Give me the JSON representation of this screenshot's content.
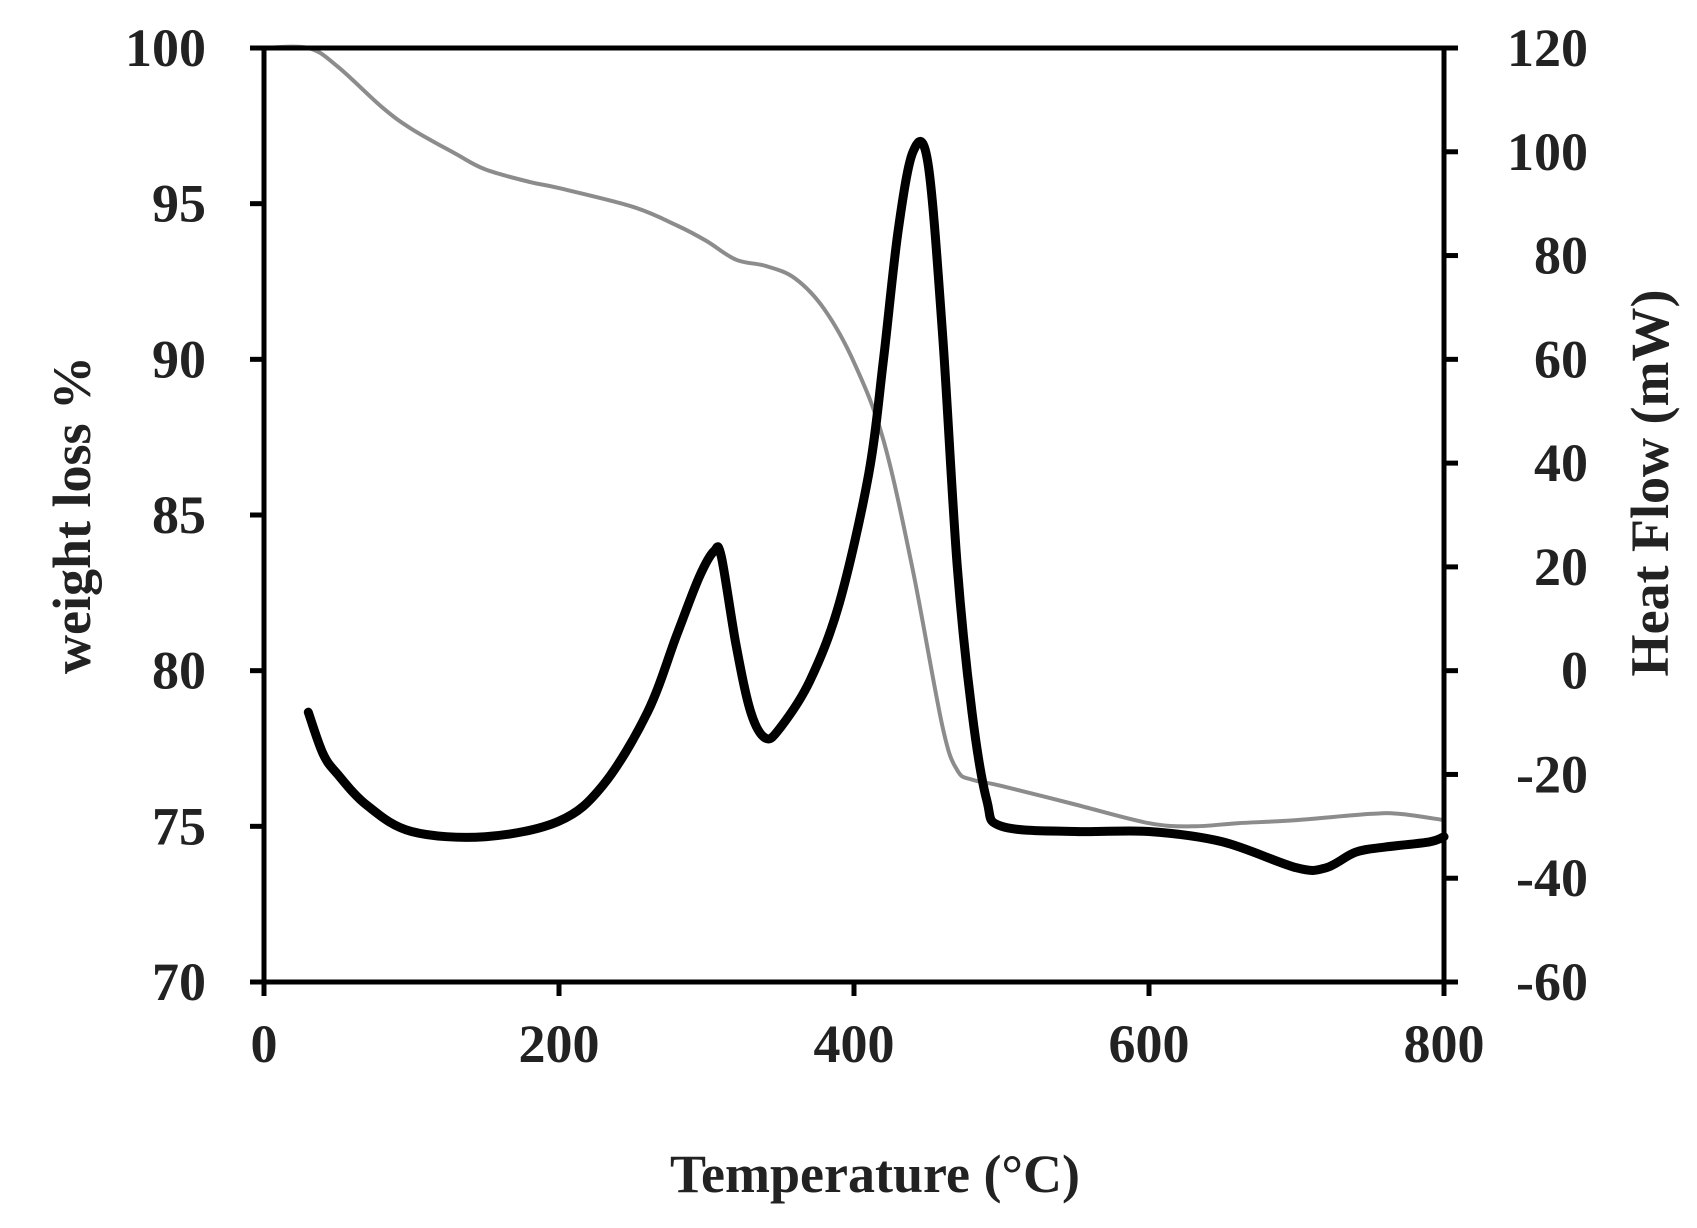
{
  "chart_data": {
    "type": "line",
    "title": "",
    "xlabel": "Temperature (°C)",
    "ylabel_left": "weight loss %",
    "ylabel_right": "Heat Flow (mW)",
    "xlim": [
      0,
      800
    ],
    "ylim_left": [
      70,
      100
    ],
    "ylim_right": [
      -60,
      120
    ],
    "x_ticks": [
      "0",
      "200",
      "400",
      "600",
      "800"
    ],
    "y_left_ticks": [
      "70",
      "75",
      "80",
      "85",
      "90",
      "95",
      "100"
    ],
    "y_right_ticks": [
      "-60",
      "-40",
      "-20",
      "0",
      "20",
      "40",
      "60",
      "80",
      "100",
      "120"
    ],
    "grid": false,
    "legend": "none",
    "series": [
      {
        "axis": "left",
        "color": "#8c8c8c",
        "x": [
          0,
          30,
          50,
          80,
          100,
          130,
          150,
          180,
          200,
          250,
          280,
          300,
          320,
          340,
          360,
          380,
          400,
          420,
          440,
          460,
          470,
          480,
          500,
          550,
          600,
          630,
          660,
          700,
          750,
          770,
          800
        ],
        "values": [
          100,
          100,
          99.4,
          98.1,
          97.4,
          96.6,
          96.1,
          95.7,
          95.5,
          94.9,
          94.3,
          93.8,
          93.2,
          93.0,
          92.6,
          91.6,
          89.9,
          87.4,
          83.2,
          78.2,
          76.8,
          76.5,
          76.3,
          75.7,
          75.1,
          75.0,
          75.1,
          75.2,
          75.4,
          75.4,
          75.2
        ]
      },
      {
        "axis": "right",
        "color": "#000000",
        "x": [
          30,
          40,
          50,
          70,
          100,
          150,
          200,
          230,
          260,
          280,
          295,
          305,
          310,
          320,
          330,
          340,
          350,
          370,
          390,
          410,
          420,
          430,
          440,
          450,
          460,
          470,
          480,
          490,
          500,
          550,
          600,
          650,
          700,
          720,
          740,
          760,
          790,
          800
        ],
        "values": [
          -8,
          -16,
          -20,
          -26,
          -31,
          -32,
          -29,
          -22,
          -8,
          7,
          18,
          23,
          22,
          5,
          -8,
          -13,
          -11,
          -2,
          13,
          38,
          60,
          85,
          100,
          98,
          65,
          20,
          -8,
          -25,
          -30,
          -31,
          -31,
          -33,
          -38,
          -38,
          -35,
          -34,
          -33,
          -32
        ]
      }
    ]
  }
}
